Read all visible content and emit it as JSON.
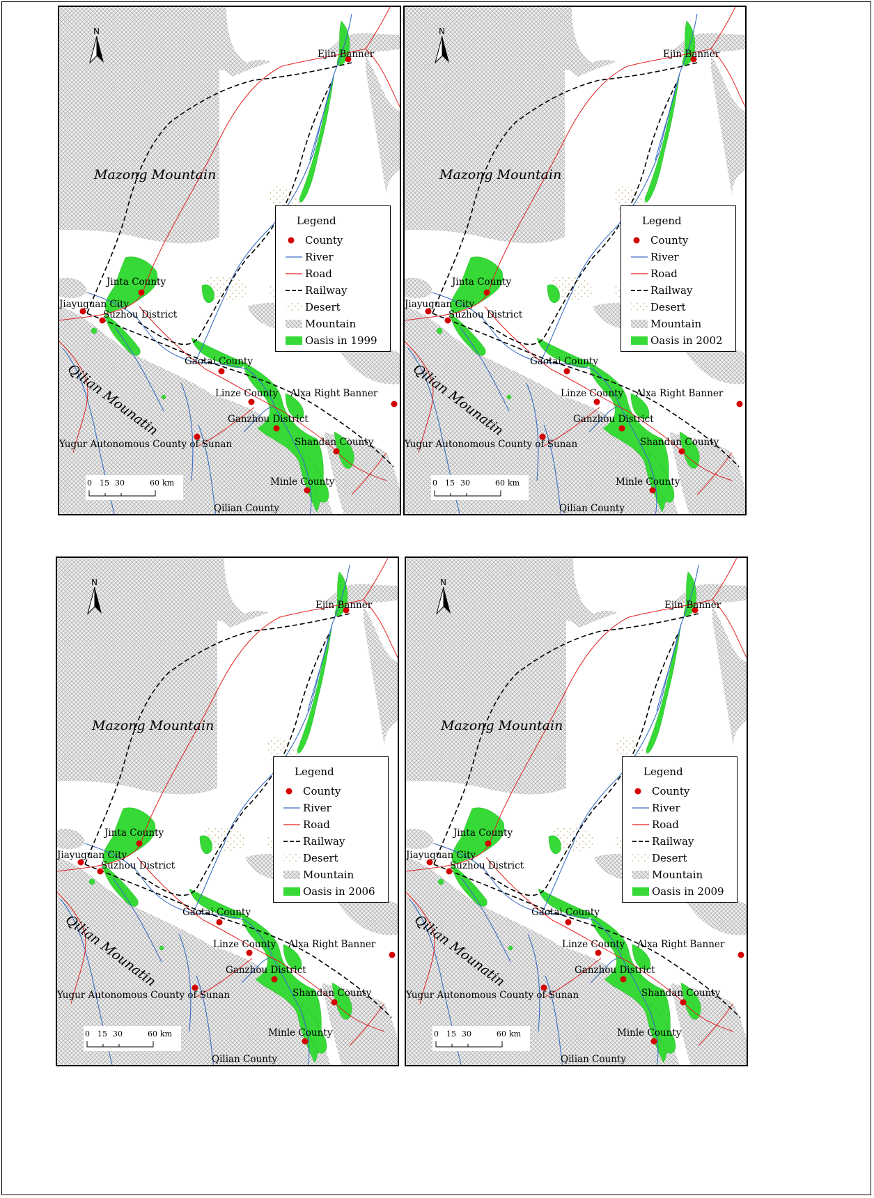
{
  "legend": {
    "title": "Legend",
    "items": [
      "County",
      "River",
      "Road",
      "Railway",
      "Desert",
      "Mountain"
    ]
  },
  "north_arrow_label": "N",
  "scale_bar": {
    "ticks": [
      "0",
      "15",
      "30",
      "60"
    ],
    "unit": "km"
  },
  "region_labels": {
    "mazong": "Mazong Mountain",
    "qilian": "Qilian Mounatin"
  },
  "place_labels": {
    "ejin": "Ejin Banner",
    "jinta": "Jinta County",
    "jiayuguan": "Jiayuguan City",
    "suzhou": "Suzhou District",
    "gaotai": "Gaotai County",
    "linze": "Linze County",
    "alxa": "Alxa Right Banner",
    "ganzhou": "Ganzhou District",
    "shandan": "Shandan County",
    "sunan": "Yugur Autonomous County of Sunan",
    "minle": "Minle County",
    "qilian": "Qilian County"
  },
  "panels": [
    {
      "oasis_label": "Oasis in 1999"
    },
    {
      "oasis_label": "Oasis in 2002"
    },
    {
      "oasis_label": "Oasis in 2006"
    },
    {
      "oasis_label": "Oasis in 2009"
    }
  ],
  "colors": {
    "county": "#d40000",
    "river": "#3a6fc4",
    "road": "#e02020",
    "railway": "#000000",
    "desert": "#d8c89a",
    "mountain_line": "#9a9a9a",
    "oasis": "#36d936"
  }
}
